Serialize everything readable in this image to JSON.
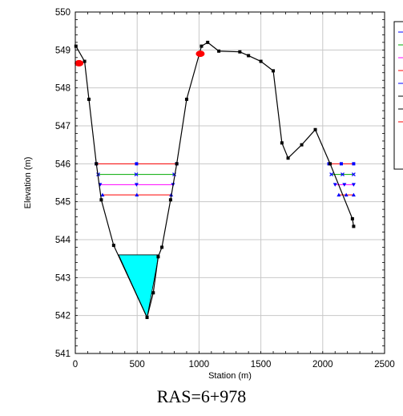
{
  "chart_data": {
    "type": "line",
    "title": "",
    "xlabel": "Station (m)",
    "ylabel": "Elevation (m)",
    "xlim": [
      0,
      2500
    ],
    "ylim": [
      541,
      550
    ],
    "xticks": [
      0,
      500,
      1000,
      1500,
      2000,
      2500
    ],
    "yticks": [
      541,
      542,
      543,
      544,
      545,
      546,
      547,
      548,
      549,
      550
    ],
    "grid": true,
    "legend_position": "top-right (truncated at right edge)",
    "caption": "RAS=6+978",
    "ground_profile": {
      "color": "#000000",
      "x": [
        5,
        75,
        110,
        170,
        210,
        310,
        580,
        630,
        670,
        700,
        770,
        820,
        900,
        1020,
        1070,
        1160,
        1330,
        1400,
        1500,
        1600,
        1670,
        1720,
        1830,
        1940,
        2060,
        2240,
        2250
      ],
      "y": [
        549.1,
        548.7,
        547.7,
        546.0,
        545.05,
        543.85,
        541.95,
        542.6,
        543.55,
        543.8,
        545.05,
        546.0,
        547.7,
        549.1,
        549.2,
        548.97,
        548.95,
        548.85,
        548.7,
        548.45,
        546.55,
        546.15,
        546.5,
        546.9,
        546.0,
        544.55,
        544.35
      ]
    },
    "bank_stations": {
      "color": "#ff0000",
      "x": [
        30,
        1010
      ],
      "y": [
        548.65,
        548.9
      ]
    },
    "water_surfaces": [
      {
        "color": "#ff0000",
        "marker": "square",
        "y": 546.0,
        "segments": [
          [
            170,
            820
          ],
          [
            2050,
            2250
          ]
        ]
      },
      {
        "color": "#00aa00",
        "marker": "x",
        "y": 545.72,
        "segments": [
          [
            185,
            800
          ],
          [
            2070,
            2250
          ]
        ]
      },
      {
        "color": "#ff00ff",
        "marker": "triangle-down",
        "y": 545.45,
        "segments": [
          [
            200,
            790
          ],
          [
            2100,
            2250
          ]
        ]
      },
      {
        "color": "#ff0000",
        "marker": "triangle-up",
        "y": 545.18,
        "segments": [
          [
            220,
            775
          ],
          [
            2130,
            2250
          ]
        ]
      }
    ],
    "water_fill": {
      "color": "#00ffff",
      "x": [
        350,
        675,
        580
      ],
      "y": [
        543.6,
        543.6,
        541.95
      ]
    }
  }
}
